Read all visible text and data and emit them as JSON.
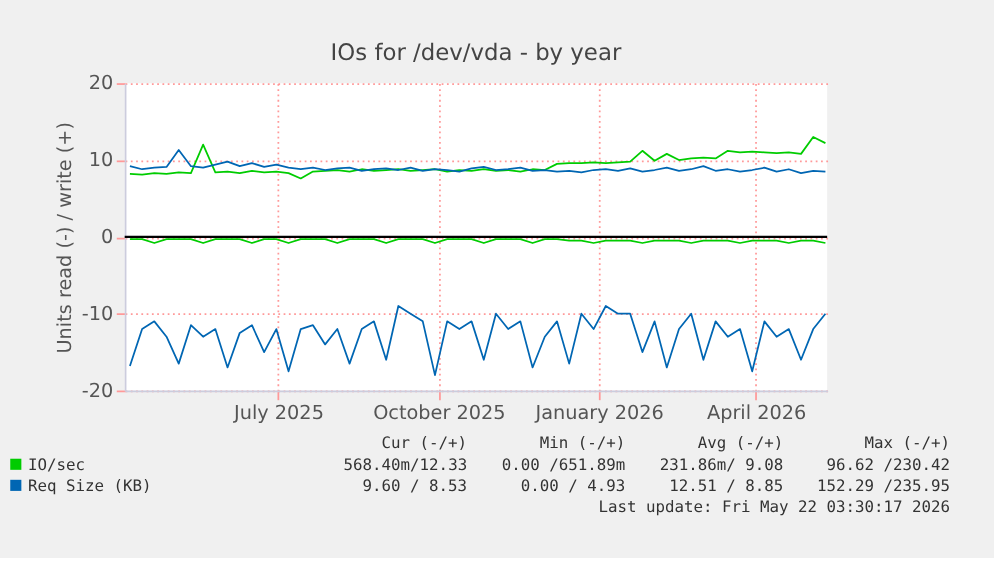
{
  "chart_data": {
    "type": "line",
    "title": "IOs for /dev/vda - by year",
    "ylabel": "Units read (-) / write (+)",
    "x": [
      "2025-04-07",
      "2025-04-14",
      "2025-04-21",
      "2025-04-28",
      "2025-05-05",
      "2025-05-12",
      "2025-05-19",
      "2025-05-26",
      "2025-06-02",
      "2025-06-09",
      "2025-06-16",
      "2025-06-23",
      "2025-06-30",
      "2025-07-07",
      "2025-07-14",
      "2025-07-21",
      "2025-07-28",
      "2025-08-04",
      "2025-08-11",
      "2025-08-18",
      "2025-08-25",
      "2025-09-01",
      "2025-09-08",
      "2025-09-15",
      "2025-09-22",
      "2025-09-29",
      "2025-10-06",
      "2025-10-13",
      "2025-10-20",
      "2025-10-27",
      "2025-11-03",
      "2025-11-10",
      "2025-11-17",
      "2025-11-24",
      "2025-12-01",
      "2025-12-08",
      "2025-12-15",
      "2025-12-22",
      "2025-12-29",
      "2026-01-05",
      "2026-01-12",
      "2026-01-19",
      "2026-01-26",
      "2026-02-02",
      "2026-02-09",
      "2026-02-16",
      "2026-02-23",
      "2026-03-02",
      "2026-03-09",
      "2026-03-16",
      "2026-03-23",
      "2026-03-30",
      "2026-04-06",
      "2026-04-13",
      "2026-04-20",
      "2026-04-27",
      "2026-05-04",
      "2026-05-11"
    ],
    "series": [
      {
        "name": "IO/sec",
        "color": "#00cc00",
        "values": [
          8.2,
          8.1,
          8.3,
          8.2,
          8.4,
          8.3,
          12,
          8.4,
          8.5,
          8.3,
          8.6,
          8.4,
          8.5,
          8.3,
          7.6,
          8.5,
          8.6,
          8.7,
          8.5,
          8.8,
          8.6,
          8.7,
          8.8,
          8.6,
          8.7,
          8.8,
          8.5,
          8.7,
          8.6,
          8.8,
          8.6,
          8.7,
          8.5,
          8.8,
          8.7,
          9.5,
          9.6,
          9.6,
          9.7,
          9.6,
          9.7,
          9.8,
          11.2,
          9.9,
          10.8,
          10,
          10.2,
          10.3,
          10.2,
          11.2,
          11,
          11.1,
          11,
          10.9,
          11,
          10.8,
          13,
          12.2
        ]
      },
      {
        "color": "#00cc00",
        "values": [
          -0.3,
          -0.3,
          -0.8,
          -0.3,
          -0.3,
          -0.3,
          -0.8,
          -0.3,
          -0.3,
          -0.3,
          -0.8,
          -0.3,
          -0.3,
          -0.8,
          -0.3,
          -0.3,
          -0.3,
          -0.8,
          -0.3,
          -0.3,
          -0.3,
          -0.8,
          -0.3,
          -0.3,
          -0.3,
          -0.8,
          -0.3,
          -0.3,
          -0.3,
          -0.8,
          -0.3,
          -0.3,
          -0.3,
          -0.8,
          -0.3,
          -0.3,
          -0.5,
          -0.5,
          -0.8,
          -0.5,
          -0.5,
          -0.5,
          -0.8,
          -0.5,
          -0.5,
          -0.5,
          -0.8,
          -0.5,
          -0.5,
          -0.5,
          -0.8,
          -0.5,
          -0.5,
          -0.5,
          -0.8,
          -0.5,
          -0.5,
          -0.8
        ]
      },
      {
        "name": "Req Size (KB)",
        "color": "#0066b3",
        "values": [
          9.2,
          8.8,
          9.0,
          9.1,
          11.3,
          9.2,
          9.0,
          9.4,
          9.8,
          9.2,
          9.6,
          9.1,
          9.4,
          9.0,
          8.8,
          9.0,
          8.7,
          8.9,
          9.0,
          8.6,
          8.8,
          8.9,
          8.7,
          9.0,
          8.6,
          8.8,
          8.7,
          8.5,
          8.9,
          9.1,
          8.7,
          8.8,
          9.0,
          8.6,
          8.7,
          8.5,
          8.6,
          8.4,
          8.7,
          8.8,
          8.6,
          8.9,
          8.5,
          8.7,
          9.0,
          8.6,
          8.8,
          9.2,
          8.6,
          8.8,
          8.5,
          8.7,
          9.0,
          8.5,
          8.8,
          8.3,
          8.6,
          8.5
        ]
      },
      {
        "color": "#0066b3",
        "values": [
          -16.8,
          -12,
          -11,
          -13,
          -16.5,
          -11.5,
          -13,
          -12,
          -17,
          -12.5,
          -11.5,
          -15,
          -12,
          -17.5,
          -12,
          -11.5,
          -14,
          -12,
          -16.5,
          -12,
          -11,
          -16,
          -9,
          -10,
          -11,
          -18,
          -11,
          -12,
          -11,
          -16,
          -10,
          -12,
          -11,
          -17,
          -13,
          -11,
          -16.5,
          -10,
          -12,
          -9,
          -10,
          -10,
          -15,
          -11,
          -17,
          -12,
          -10,
          -16,
          -11,
          -13,
          -12,
          -17.5,
          -11,
          -13,
          -12,
          -16,
          -12,
          -10
        ]
      }
    ],
    "xlim": [
      "2025-04-04",
      "2026-05-12"
    ],
    "xticks": [
      {
        "value": "2025-07-01",
        "label": "July 2025"
      },
      {
        "value": "2025-10-01",
        "label": "October 2025"
      },
      {
        "value": "2026-01-01",
        "label": "January 2026"
      },
      {
        "value": "2026-04-01",
        "label": "April 2026"
      }
    ],
    "ylim": [
      -20,
      20
    ],
    "yticks": [
      -20,
      -10,
      0,
      10,
      20
    ],
    "grid": true,
    "legend": "bottom",
    "ref_lines": [
      {
        "axis": "y",
        "value": 0,
        "color": "#000000"
      }
    ],
    "annotations": [
      "Cur (-/+)",
      "Min (-/+)",
      "Avg (-/+)",
      "Max (-/+)",
      "568.40m/12.33",
      "0.00 /651.89m",
      "231.86m/ 9.08",
      "96.62 /230.42",
      "9.60 / 8.53",
      "0.00 / 4.93",
      "12.51 / 8.85",
      "152.29 /235.95",
      "Last update: Fri May 22 03:30:17 2026"
    ]
  }
}
